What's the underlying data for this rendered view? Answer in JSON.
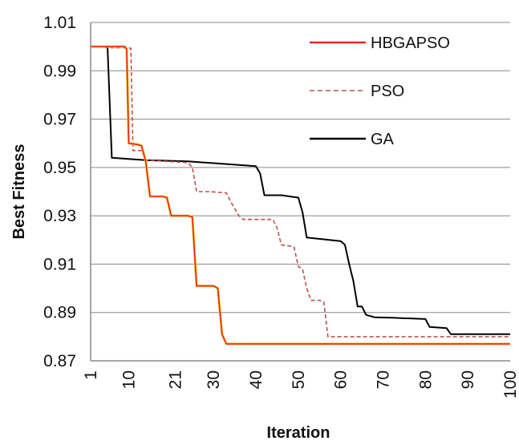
{
  "chart_data": {
    "type": "line",
    "title": "",
    "xlabel": "Iteration",
    "ylabel": "Best Fitness",
    "xlim": [
      1,
      100
    ],
    "ylim": [
      0.87,
      1.01
    ],
    "x_ticks": [
      1,
      10,
      21,
      30,
      40,
      50,
      60,
      70,
      80,
      90,
      100
    ],
    "x_tick_labels": [
      "1",
      "10",
      "21",
      "30",
      "40",
      "50",
      "60",
      "70",
      "80",
      "90",
      "100"
    ],
    "y_ticks": [
      0.87,
      0.89,
      0.91,
      0.93,
      0.95,
      0.97,
      0.99,
      1.01
    ],
    "y_tick_labels": [
      "0.87",
      "0.89",
      "0.91",
      "0.93",
      "0.95",
      "0.97",
      "0.99",
      "1.01"
    ],
    "grid": "horizontal",
    "legend": "top-right",
    "series": [
      {
        "name": "HBGAPSO",
        "color": "#e8262a",
        "secondary_color": "#f5c518",
        "style": "solid",
        "points": [
          [
            1,
            1.0
          ],
          [
            9,
            1.0
          ],
          [
            9.5,
            0.999
          ],
          [
            10,
            0.96
          ],
          [
            12,
            0.9595
          ],
          [
            13,
            0.959
          ],
          [
            14,
            0.9525
          ],
          [
            15,
            0.938
          ],
          [
            18,
            0.938
          ],
          [
            19,
            0.9375
          ],
          [
            20,
            0.93
          ],
          [
            24,
            0.93
          ],
          [
            25,
            0.9295
          ],
          [
            26,
            0.901
          ],
          [
            30,
            0.901
          ],
          [
            31,
            0.9
          ],
          [
            32,
            0.881
          ],
          [
            33,
            0.877
          ],
          [
            100,
            0.877
          ]
        ]
      },
      {
        "name": "PSO",
        "color": "#c0504d",
        "style": "dashed",
        "points": [
          [
            1,
            1.0
          ],
          [
            5,
            1.0
          ],
          [
            6,
            0.9995
          ],
          [
            10,
            0.9995
          ],
          [
            10.5,
            0.9993
          ],
          [
            11,
            0.957
          ],
          [
            13,
            0.957
          ],
          [
            14,
            0.953
          ],
          [
            24,
            0.952
          ],
          [
            25,
            0.95
          ],
          [
            26,
            0.94
          ],
          [
            29,
            0.94
          ],
          [
            33,
            0.9395
          ],
          [
            34,
            0.936
          ],
          [
            36,
            0.93
          ],
          [
            37,
            0.9285
          ],
          [
            44,
            0.9285
          ],
          [
            45,
            0.925
          ],
          [
            46,
            0.918
          ],
          [
            48,
            0.9175
          ],
          [
            49,
            0.917
          ],
          [
            50,
            0.909
          ],
          [
            51,
            0.908
          ],
          [
            52,
            0.9
          ],
          [
            53,
            0.895
          ],
          [
            55,
            0.895
          ],
          [
            56,
            0.8945
          ],
          [
            57,
            0.88
          ],
          [
            100,
            0.88
          ]
        ]
      },
      {
        "name": "GA",
        "color": "#000000",
        "style": "solid",
        "points": [
          [
            1,
            1.0
          ],
          [
            4,
            1.0
          ],
          [
            5,
            0.9995
          ],
          [
            6,
            0.954
          ],
          [
            14,
            0.953
          ],
          [
            24,
            0.9525
          ],
          [
            40,
            0.9505
          ],
          [
            41,
            0.9475
          ],
          [
            42,
            0.9385
          ],
          [
            46,
            0.9385
          ],
          [
            48,
            0.938
          ],
          [
            50,
            0.9375
          ],
          [
            51,
            0.9315
          ],
          [
            52,
            0.921
          ],
          [
            60,
            0.9195
          ],
          [
            61,
            0.918
          ],
          [
            62,
            0.91
          ],
          [
            63,
            0.903
          ],
          [
            64,
            0.8925
          ],
          [
            65,
            0.8925
          ],
          [
            66,
            0.889
          ],
          [
            68,
            0.888
          ],
          [
            72,
            0.8878
          ],
          [
            80,
            0.8873
          ],
          [
            81,
            0.884
          ],
          [
            85,
            0.8835
          ],
          [
            86,
            0.881
          ],
          [
            100,
            0.881
          ]
        ]
      }
    ]
  }
}
